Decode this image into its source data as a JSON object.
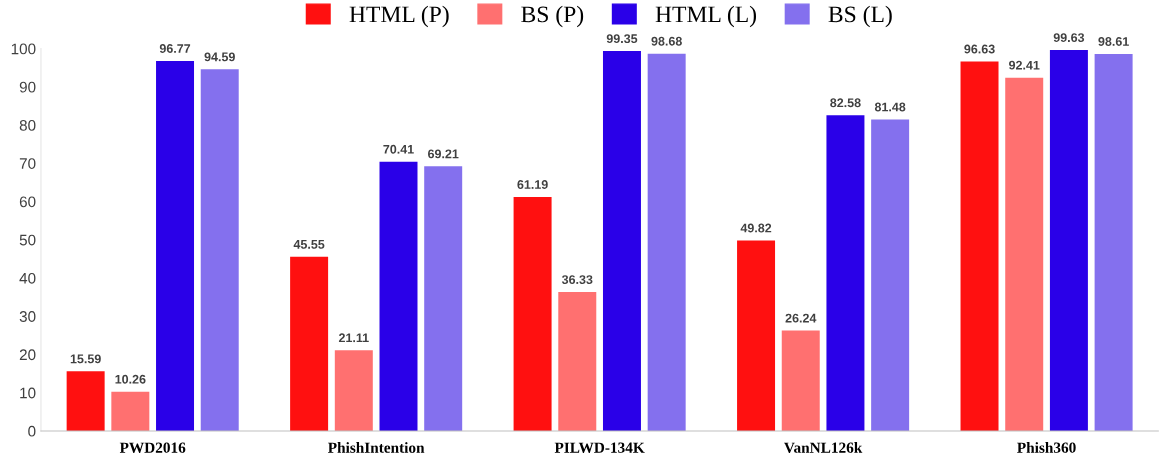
{
  "chart_data": {
    "type": "bar",
    "categories": [
      "PWD2016",
      "PhishIntention",
      "PILWD-134K",
      "VanNL126k",
      "Phish360"
    ],
    "series": [
      {
        "name": "HTML (P)",
        "color": "#ff1010",
        "values": [
          15.59,
          45.55,
          61.19,
          49.82,
          96.63
        ]
      },
      {
        "name": "BS (P)",
        "color": "#ff7070",
        "values": [
          10.26,
          21.11,
          36.33,
          26.24,
          92.41
        ]
      },
      {
        "name": "HTML (L)",
        "color": "#2a00e8",
        "values": [
          96.77,
          70.41,
          99.35,
          82.58,
          99.63
        ]
      },
      {
        "name": "BS (L)",
        "color": "#8470ee",
        "values": [
          94.59,
          69.21,
          98.68,
          81.48,
          98.61
        ]
      }
    ],
    "ylim": [
      0,
      100
    ],
    "yticks": [
      0,
      10,
      20,
      30,
      40,
      50,
      60,
      70,
      80,
      90,
      100
    ],
    "grid": false,
    "legend": "top",
    "data_labels": true
  }
}
